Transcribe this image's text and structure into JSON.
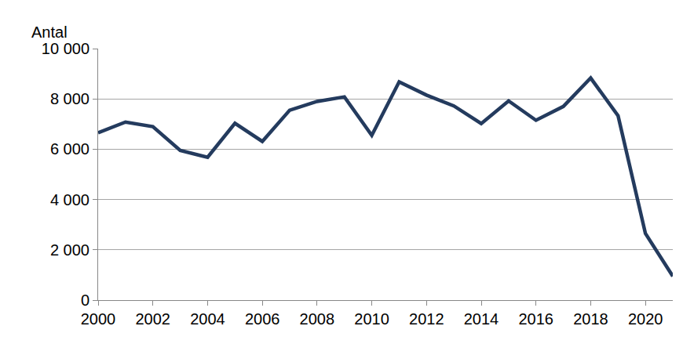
{
  "chart_data": {
    "type": "line",
    "y_label": "Antal",
    "x": [
      2000,
      2001,
      2002,
      2003,
      2004,
      2005,
      2006,
      2007,
      2008,
      2009,
      2010,
      2011,
      2012,
      2013,
      2014,
      2015,
      2016,
      2017,
      2018,
      2019,
      2020,
      2021
    ],
    "values": [
      6650,
      7080,
      6900,
      5950,
      5680,
      7030,
      6310,
      7550,
      7900,
      8080,
      6550,
      8680,
      8150,
      7720,
      7020,
      7920,
      7150,
      7700,
      8830,
      7330,
      2650,
      950
    ],
    "color": "#243b5e",
    "xlim": [
      2000,
      2021
    ],
    "xticks": [
      2000,
      2002,
      2004,
      2006,
      2008,
      2010,
      2012,
      2014,
      2016,
      2018,
      2020
    ],
    "ylim": [
      0,
      10000
    ],
    "yticks": [
      0,
      {
        "value": 2000,
        "label": "2 000"
      },
      {
        "value": 4000,
        "label": "4 000"
      },
      {
        "value": 6000,
        "label": "6 000"
      },
      {
        "value": 8000,
        "label": "8 000"
      },
      {
        "value": 10000,
        "label": "10 000"
      }
    ],
    "grid": true
  }
}
